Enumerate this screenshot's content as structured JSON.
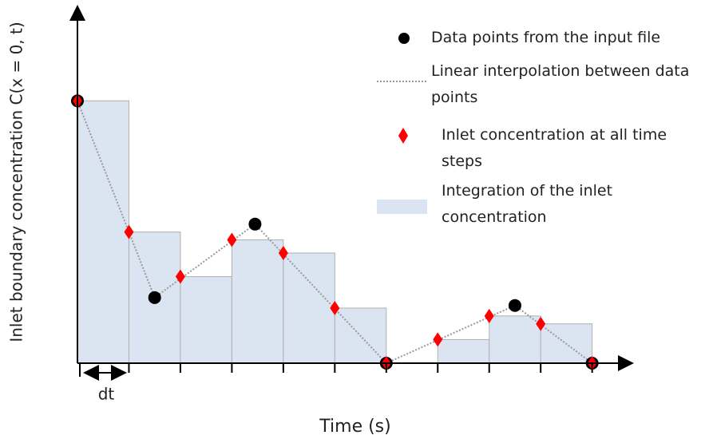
{
  "chart_data": {
    "type": "step-diagram",
    "x_label": "Time (s)",
    "y_label": "Inlet boundary concentration C(x = 0, t)",
    "annotation": "dt",
    "xlim": [
      0,
      10.75
    ],
    "ylim": [
      0,
      13.6
    ],
    "xticks": [
      1,
      2,
      3,
      4,
      5,
      6,
      7,
      8,
      9,
      10
    ],
    "series": [
      {
        "name": "Data points from the input file",
        "color": "#000000",
        "x": [
          0,
          1.5,
          3.45,
          6,
          8.5,
          10
        ],
        "values": [
          10,
          2.5,
          5.3,
          0,
          2.2,
          0
        ]
      },
      {
        "name": "Inlet concentration at all time steps",
        "color": "#ff0000",
        "x": [
          0,
          1,
          2,
          3,
          4,
          5,
          6,
          7,
          8,
          9,
          10
        ],
        "values": [
          10,
          5.0,
          3.3,
          4.7,
          4.2,
          2.1,
          0,
          0.9,
          1.8,
          1.5,
          0
        ]
      }
    ],
    "interpolation": {
      "name": "Linear interpolation between data points",
      "color": "#999999"
    },
    "integration": {
      "name": "Integration of the inlet concentration",
      "color": "#dbe5f1"
    }
  }
}
